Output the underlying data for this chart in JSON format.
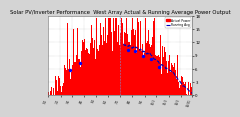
{
  "title": "Solar PV/Inverter Performance  West Array Actual & Running Average Power Output",
  "title_fontsize": 3.8,
  "bg_color": "#d4d4d4",
  "plot_bg_color": "#ffffff",
  "bar_color": "#ff0000",
  "avg_line_color": "#0000bb",
  "dot_color": "#0000ff",
  "grid_color": "#aaaaaa",
  "legend_entries": [
    "Actual Power",
    "Running Avg"
  ],
  "legend_colors": [
    "#ff0000",
    "#0000bb"
  ],
  "ylim": [
    0,
    1800
  ],
  "ytick_vals": [
    0,
    300,
    600,
    900,
    1200,
    1500,
    1800
  ],
  "ytick_labels": [
    "0",
    "3",
    "6",
    "9",
    "12",
    "15",
    "18"
  ],
  "num_points": 365,
  "peak_day": 180,
  "peak_value": 1750,
  "vline_x": 180,
  "seed": 12345
}
